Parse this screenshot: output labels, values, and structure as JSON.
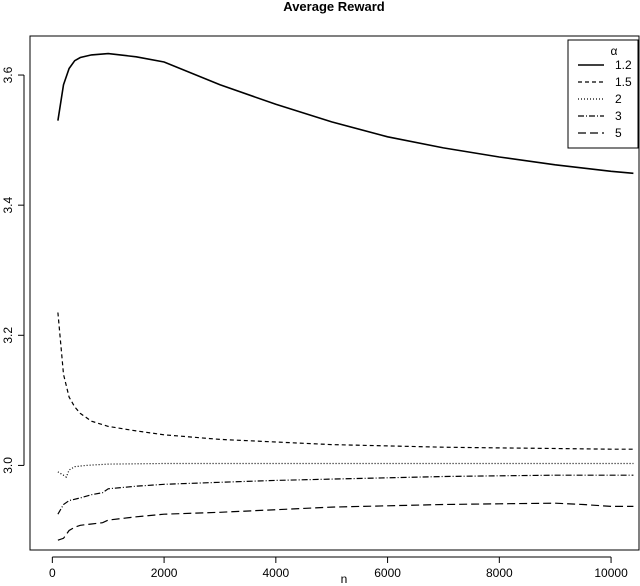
{
  "chart_data": {
    "type": "line",
    "title": "Average Reward",
    "xlabel": "n",
    "ylabel": "",
    "xlim": [
      -400,
      10500
    ],
    "ylim": [
      2.87,
      3.66
    ],
    "xticks": [
      "0",
      "2000",
      "4000",
      "6000",
      "8000",
      "10000"
    ],
    "yticks": [
      "3.0",
      "3.2",
      "3.4",
      "3.6"
    ],
    "legend": {
      "title": "α",
      "position": "top-right"
    },
    "grid": false,
    "series": [
      {
        "name": "1.2",
        "style": "solid",
        "x": [
          100,
          200,
          300,
          400,
          500,
          700,
          1000,
          1500,
          2000,
          3000,
          4000,
          5000,
          6000,
          7000,
          8000,
          9000,
          10000,
          10400
        ],
        "y": [
          3.53,
          3.585,
          3.61,
          3.622,
          3.627,
          3.631,
          3.633,
          3.628,
          3.62,
          3.585,
          3.555,
          3.528,
          3.505,
          3.488,
          3.474,
          3.462,
          3.452,
          3.449
        ]
      },
      {
        "name": "1.5",
        "style": "dashed",
        "x": [
          100,
          200,
          300,
          400,
          500,
          700,
          1000,
          1500,
          2000,
          3000,
          4000,
          5000,
          6000,
          7000,
          8000,
          9000,
          10000,
          10400
        ],
        "y": [
          3.235,
          3.14,
          3.105,
          3.09,
          3.08,
          3.068,
          3.06,
          3.053,
          3.047,
          3.04,
          3.036,
          3.032,
          3.03,
          3.028,
          3.027,
          3.026,
          3.025,
          3.025
        ]
      },
      {
        "name": "2",
        "style": "dotted",
        "x": [
          100,
          200,
          250,
          300,
          400,
          600,
          1000,
          2000,
          4000,
          6000,
          8000,
          10000,
          10400
        ],
        "y": [
          2.99,
          2.985,
          2.982,
          2.993,
          2.998,
          3.0,
          3.002,
          3.003,
          3.003,
          3.003,
          3.003,
          3.003,
          3.003
        ]
      },
      {
        "name": "3",
        "style": "dashdot",
        "x": [
          100,
          200,
          300,
          500,
          700,
          900,
          1000,
          1500,
          2000,
          3000,
          4000,
          5000,
          6000,
          7000,
          8000,
          9000,
          10000,
          10400
        ],
        "y": [
          2.925,
          2.94,
          2.946,
          2.95,
          2.955,
          2.958,
          2.964,
          2.968,
          2.971,
          2.974,
          2.977,
          2.979,
          2.981,
          2.983,
          2.984,
          2.985,
          2.985,
          2.985
        ]
      },
      {
        "name": "5",
        "style": "longdash",
        "x": [
          100,
          200,
          300,
          400,
          500,
          700,
          900,
          1000,
          1500,
          2000,
          3000,
          4000,
          5000,
          6000,
          7000,
          8000,
          9000,
          9500,
          10000,
          10400
        ],
        "y": [
          2.885,
          2.888,
          2.9,
          2.905,
          2.908,
          2.91,
          2.912,
          2.916,
          2.921,
          2.925,
          2.928,
          2.932,
          2.936,
          2.938,
          2.94,
          2.941,
          2.942,
          2.94,
          2.937,
          2.937
        ]
      }
    ]
  }
}
